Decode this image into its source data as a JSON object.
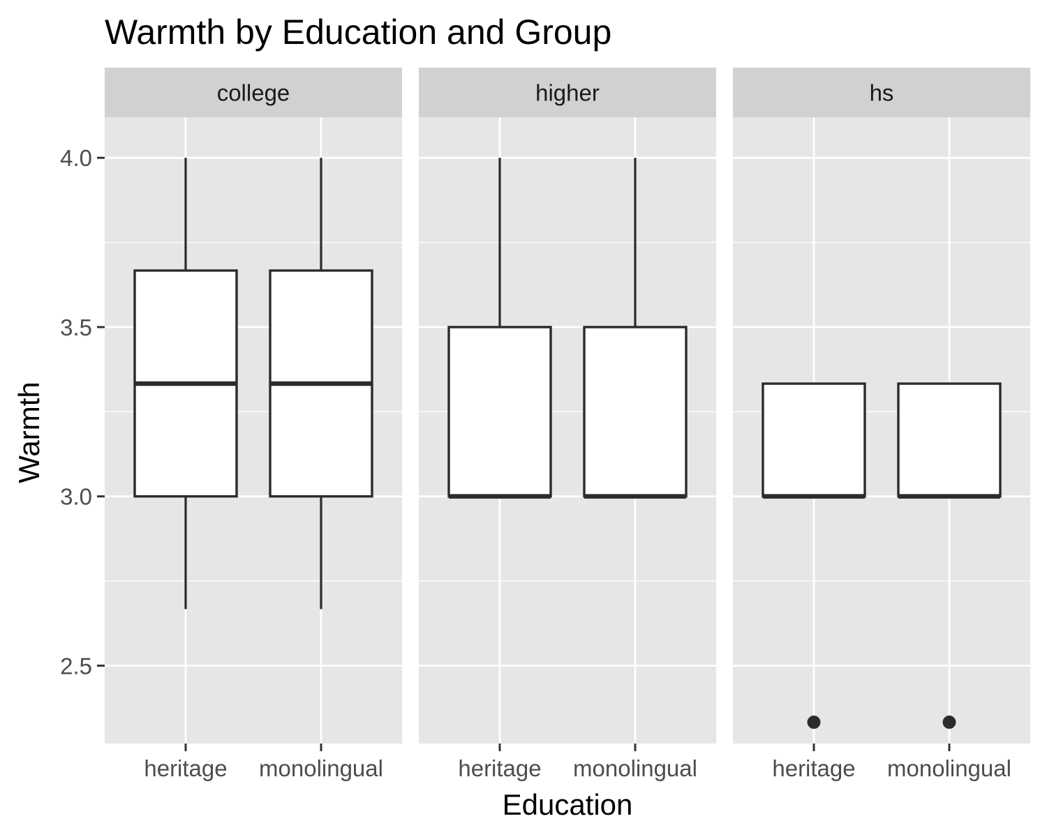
{
  "chart_data": {
    "type": "boxplot",
    "title": "Warmth by Education and Group",
    "xlabel": "Education",
    "ylabel": "Warmth",
    "ylim": [
      2.27,
      4.12
    ],
    "yticks": [
      "2.5",
      "3.0",
      "3.5",
      "4.0"
    ],
    "grid": true,
    "facets": [
      {
        "label": "college",
        "groups": [
          {
            "category": "heritage",
            "whisker_low": 2.667,
            "q1": 3.0,
            "median": 3.333,
            "q3": 3.667,
            "whisker_high": 4.0,
            "outliers": []
          },
          {
            "category": "monolingual",
            "whisker_low": 2.667,
            "q1": 3.0,
            "median": 3.333,
            "q3": 3.667,
            "whisker_high": 4.0,
            "outliers": []
          }
        ]
      },
      {
        "label": "higher",
        "groups": [
          {
            "category": "heritage",
            "whisker_low": 3.0,
            "q1": 3.0,
            "median": 3.0,
            "q3": 3.5,
            "whisker_high": 4.0,
            "outliers": []
          },
          {
            "category": "monolingual",
            "whisker_low": 3.0,
            "q1": 3.0,
            "median": 3.0,
            "q3": 3.5,
            "whisker_high": 4.0,
            "outliers": []
          }
        ]
      },
      {
        "label": "hs",
        "groups": [
          {
            "category": "heritage",
            "whisker_low": 3.0,
            "q1": 3.0,
            "median": 3.0,
            "q3": 3.333,
            "whisker_high": 3.333,
            "outliers": [
              2.333
            ]
          },
          {
            "category": "monolingual",
            "whisker_low": 3.0,
            "q1": 3.0,
            "median": 3.0,
            "q3": 3.333,
            "whisker_high": 3.333,
            "outliers": [
              2.333
            ]
          }
        ]
      }
    ],
    "colors": {
      "panel_bg": "#e6e6e6",
      "strip_bg": "#d1d1d1",
      "grid": "#ffffff",
      "box_fill": "#ffffff",
      "box_stroke": "#2b2b2b"
    }
  }
}
